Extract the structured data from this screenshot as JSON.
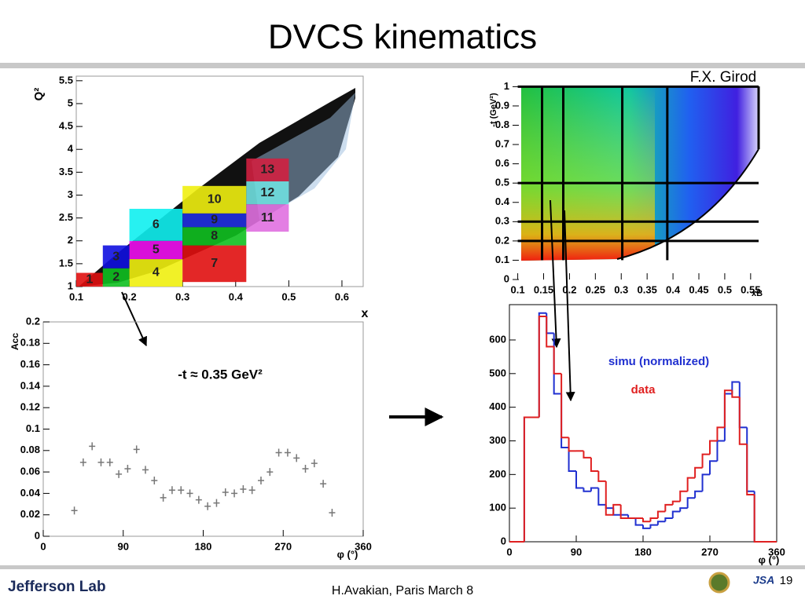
{
  "header": {
    "title": "DVCS kinematics",
    "credit": "F.X. Girod"
  },
  "footer": {
    "logo": "Jefferson Lab",
    "text": "H.Avakian, Paris March 8",
    "jsa": "JSA",
    "page": "19"
  },
  "chart_data": [
    {
      "type": "binned-scatter",
      "x_label": "x",
      "y_label": "Q²",
      "xlim": [
        0.1,
        0.64
      ],
      "xticks": [
        0.1,
        0.2,
        0.3,
        0.4,
        0.5,
        0.6
      ],
      "ylim": [
        1,
        5.6
      ],
      "yticks": [
        1,
        1.5,
        2,
        2.5,
        3,
        3.5,
        4,
        4.5,
        5,
        5.5
      ],
      "bins": [
        {
          "label": "1",
          "x": [
            0.1,
            0.15
          ],
          "y": [
            1,
            1.3
          ],
          "color": "#e01010"
        },
        {
          "label": "2",
          "x": [
            0.15,
            0.2
          ],
          "y": [
            1,
            1.4
          ],
          "color": "#10c020"
        },
        {
          "label": "3",
          "x": [
            0.15,
            0.2
          ],
          "y": [
            1.4,
            1.9
          ],
          "color": "#1010e0"
        },
        {
          "label": "4",
          "x": [
            0.2,
            0.3
          ],
          "y": [
            1,
            1.6
          ],
          "color": "#f0f010"
        },
        {
          "label": "5",
          "x": [
            0.2,
            0.3
          ],
          "y": [
            1.6,
            2
          ],
          "color": "#f010f0"
        },
        {
          "label": "6",
          "x": [
            0.2,
            0.3
          ],
          "y": [
            2,
            2.7
          ],
          "color": "#10f0f0"
        },
        {
          "label": "7",
          "x": [
            0.3,
            0.42
          ],
          "y": [
            1.1,
            1.9
          ],
          "color": "#e01010"
        },
        {
          "label": "8",
          "x": [
            0.3,
            0.42
          ],
          "y": [
            1.9,
            2.3
          ],
          "color": "#10c020"
        },
        {
          "label": "9",
          "x": [
            0.3,
            0.42
          ],
          "y": [
            2.3,
            2.6
          ],
          "color": "#2030e0"
        },
        {
          "label": "10",
          "x": [
            0.3,
            0.42
          ],
          "y": [
            2.6,
            3.2
          ],
          "color": "#f0f010"
        },
        {
          "label": "11",
          "x": [
            0.42,
            0.5
          ],
          "y": [
            2.2,
            2.8
          ],
          "color": "#e070e0"
        },
        {
          "label": "12",
          "x": [
            0.42,
            0.5
          ],
          "y": [
            2.8,
            3.3
          ],
          "color": "#70e0e0"
        },
        {
          "label": "13",
          "x": [
            0.42,
            0.5
          ],
          "y": [
            3.3,
            3.8
          ],
          "color": "#d02040"
        }
      ]
    },
    {
      "type": "scatter",
      "x_label": "φ (°)",
      "y_label": "Acc",
      "annotation": "-t ≈ 0.35 GeV²",
      "xlim": [
        0,
        360
      ],
      "xticks": [
        0,
        90,
        180,
        270,
        360
      ],
      "ylim": [
        0,
        0.2
      ],
      "yticks": [
        0,
        0.02,
        0.04,
        0.06,
        0.08,
        0.1,
        0.12,
        0.14,
        0.16,
        0.18,
        0.2
      ],
      "color": "#777777",
      "x": [
        35,
        45,
        55,
        65,
        75,
        85,
        95,
        105,
        115,
        125,
        135,
        145,
        155,
        165,
        175,
        185,
        195,
        205,
        215,
        225,
        235,
        245,
        255,
        265,
        275,
        285,
        295,
        305,
        315,
        325
      ],
      "values": [
        0.024,
        0.069,
        0.084,
        0.069,
        0.069,
        0.058,
        0.063,
        0.081,
        0.062,
        0.052,
        0.036,
        0.043,
        0.043,
        0.04,
        0.034,
        0.028,
        0.031,
        0.041,
        0.04,
        0.044,
        0.043,
        0.052,
        0.06,
        0.078,
        0.078,
        0.073,
        0.063,
        0.068,
        0.049,
        0.022
      ]
    },
    {
      "type": "heatmap",
      "x_label": "xB",
      "y_label": "-t (GeV²)",
      "xlim": [
        0.09,
        0.57
      ],
      "xticks": [
        0.1,
        0.15,
        0.2,
        0.25,
        0.3,
        0.35,
        0.4,
        0.45,
        0.5,
        0.55
      ],
      "ylim": [
        0,
        1.03
      ],
      "yticks": [
        0,
        0.1,
        0.2,
        0.3,
        0.4,
        0.5,
        0.6,
        0.7,
        0.8,
        0.9,
        1
      ],
      "bin_edges_x": [
        0.147,
        0.188,
        0.302,
        0.389
      ],
      "bin_edges_y": [
        0.2,
        0.3,
        0.5,
        1
      ]
    },
    {
      "type": "histogram",
      "x_label": "φ (°)",
      "xlim": [
        0,
        360
      ],
      "xticks": [
        0,
        90,
        180,
        270,
        360
      ],
      "ylim": [
        0,
        705
      ],
      "yticks": [
        0,
        100,
        200,
        300,
        400,
        500,
        600
      ],
      "bins": [
        0,
        10,
        20,
        30,
        40,
        50,
        60,
        70,
        80,
        90,
        100,
        110,
        120,
        130,
        140,
        150,
        160,
        170,
        180,
        190,
        200,
        210,
        220,
        230,
        240,
        250,
        260,
        270,
        280,
        290,
        300,
        310,
        320,
        330,
        340,
        350,
        360
      ],
      "series": [
        {
          "name": "simu (normalized)",
          "color": "#2030d0",
          "values": [
            0,
            0,
            370,
            370,
            680,
            620,
            440,
            280,
            210,
            160,
            150,
            160,
            110,
            100,
            80,
            80,
            70,
            50,
            40,
            50,
            60,
            70,
            90,
            100,
            130,
            150,
            200,
            240,
            300,
            440,
            475,
            340,
            150,
            0,
            0,
            0
          ]
        },
        {
          "name": "data",
          "color": "#e02020",
          "values": [
            0,
            0,
            370,
            370,
            670,
            580,
            500,
            310,
            270,
            270,
            250,
            210,
            180,
            80,
            110,
            70,
            70,
            70,
            60,
            70,
            90,
            110,
            120,
            150,
            190,
            220,
            260,
            300,
            340,
            450,
            430,
            290,
            140,
            0,
            0,
            0
          ]
        }
      ]
    }
  ]
}
